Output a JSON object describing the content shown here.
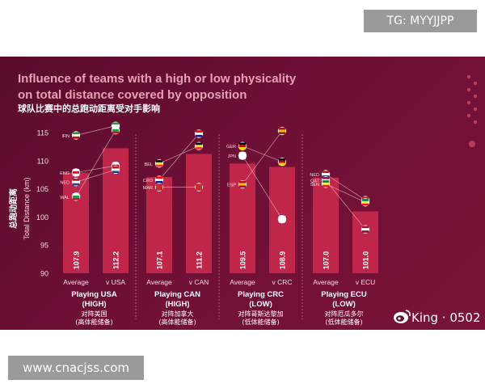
{
  "overlay": {
    "tg_label": "TG: MYYJJPP",
    "weibo_label": "King · 0502",
    "website_label": "www.cnacjss.com"
  },
  "colors": {
    "background": "#6e0f36",
    "bar": "#c0264a",
    "title": "#e8a0b4",
    "subtitle": "#ffffff",
    "text": "#f3dbe3",
    "divider": "#d7a0b2"
  },
  "icons": [
    "weibo-icon",
    "flag-icon",
    "average-marker-icon"
  ],
  "chart_data": {
    "type": "bar",
    "title": "Influence of teams with a high or low physicality on total distance covered by opposition",
    "subtitle": "球队比赛中的总跑动距离受对手影响",
    "ylabel": "Total Distance (km)",
    "ylabel_cn": "总跑动距离",
    "ylim": [
      90,
      115
    ],
    "yticks": [
      90,
      95,
      100,
      105,
      110,
      115
    ],
    "grid": false,
    "groups": [
      {
        "title": "Playing USA",
        "level": "(HIGH)",
        "cn_title": "对阵美国",
        "cn_level": "(高体能储备)",
        "bars": [
          {
            "label": "Average",
            "value": 107.9,
            "value_label": "107.9"
          },
          {
            "label": "v USA",
            "value": 112.2,
            "value_label": "112.2"
          }
        ],
        "teams": [
          {
            "code": "IRN",
            "avg": 114.5,
            "vs": 116.2,
            "colors": [
              "#239f40",
              "#ffffff",
              "#da0000"
            ]
          },
          {
            "code": "ENG",
            "avg": 107.9,
            "vs": 109.1,
            "colors": [
              "#ffffff",
              "#ce1124",
              "#ffffff"
            ]
          },
          {
            "code": "NED",
            "avg": 106.2,
            "vs": 108.4,
            "colors": [
              "#ae1c28",
              "#ffffff",
              "#21468b"
            ]
          },
          {
            "code": "WAL",
            "avg": 103.6,
            "vs": 115.4,
            "colors": [
              "#ffffff",
              "#00b140",
              "#c8102e"
            ]
          }
        ]
      },
      {
        "title": "Playing CAN",
        "level": "(HIGH)",
        "cn_title": "对阵加拿大",
        "cn_level": "(高体能储备)",
        "bars": [
          {
            "label": "Average",
            "value": 107.1,
            "value_label": "107.1"
          },
          {
            "label": "v CAN",
            "value": 111.2,
            "value_label": "111.2"
          }
        ],
        "teams": [
          {
            "code": "BEL",
            "avg": 109.5,
            "vs": 112.6,
            "colors": [
              "#000000",
              "#fdda24",
              "#ef3340"
            ]
          },
          {
            "code": "CRO",
            "avg": 106.6,
            "vs": 114.8,
            "colors": [
              "#ff0000",
              "#ffffff",
              "#171796"
            ]
          },
          {
            "code": "MAR",
            "avg": 105.3,
            "vs": 105.3,
            "colors": [
              "#c1272d",
              "#c1272d",
              "#c1272d"
            ]
          }
        ]
      },
      {
        "title": "Playing CRC",
        "level": "(LOW)",
        "cn_title": "对阵哥斯达黎加",
        "cn_level": "(低体能储备)",
        "bars": [
          {
            "label": "Average",
            "value": 109.5,
            "value_label": "109.5"
          },
          {
            "label": "v CRC",
            "value": 108.9,
            "value_label": "108.9"
          }
        ],
        "teams": [
          {
            "code": "GER",
            "avg": 112.6,
            "vs": 109.8,
            "colors": [
              "#000000",
              "#dd0000",
              "#ffce00"
            ]
          },
          {
            "code": "JPN",
            "avg": 110.9,
            "vs": 99.6,
            "colors": [
              "#ffffff",
              "#ffffff",
              "#ffffff"
            ]
          },
          {
            "code": "ESP",
            "avg": 105.8,
            "vs": 115.3,
            "colors": [
              "#aa151b",
              "#f1bf00",
              "#aa151b"
            ]
          }
        ]
      },
      {
        "title": "Playing ECU",
        "level": "(LOW)",
        "cn_title": "对阵厄瓜多尔",
        "cn_level": "(低体能储备)",
        "bars": [
          {
            "label": "Average",
            "value": 107.0,
            "value_label": "107.0"
          },
          {
            "label": "v ECU",
            "value": 101.0,
            "value_label": "101.0"
          }
        ],
        "teams": [
          {
            "code": "NED",
            "avg": 107.6,
            "vs": 103.0,
            "colors": [
              "#ae1c28",
              "#ffffff",
              "#21468b"
            ]
          },
          {
            "code": "QAT",
            "avg": 106.5,
            "vs": 97.8,
            "colors": [
              "#8a1538",
              "#ffffff",
              "#8a1538"
            ]
          },
          {
            "code": "SEN",
            "avg": 105.9,
            "vs": 102.6,
            "colors": [
              "#00853f",
              "#fdef42",
              "#e31b23"
            ]
          }
        ]
      }
    ]
  }
}
